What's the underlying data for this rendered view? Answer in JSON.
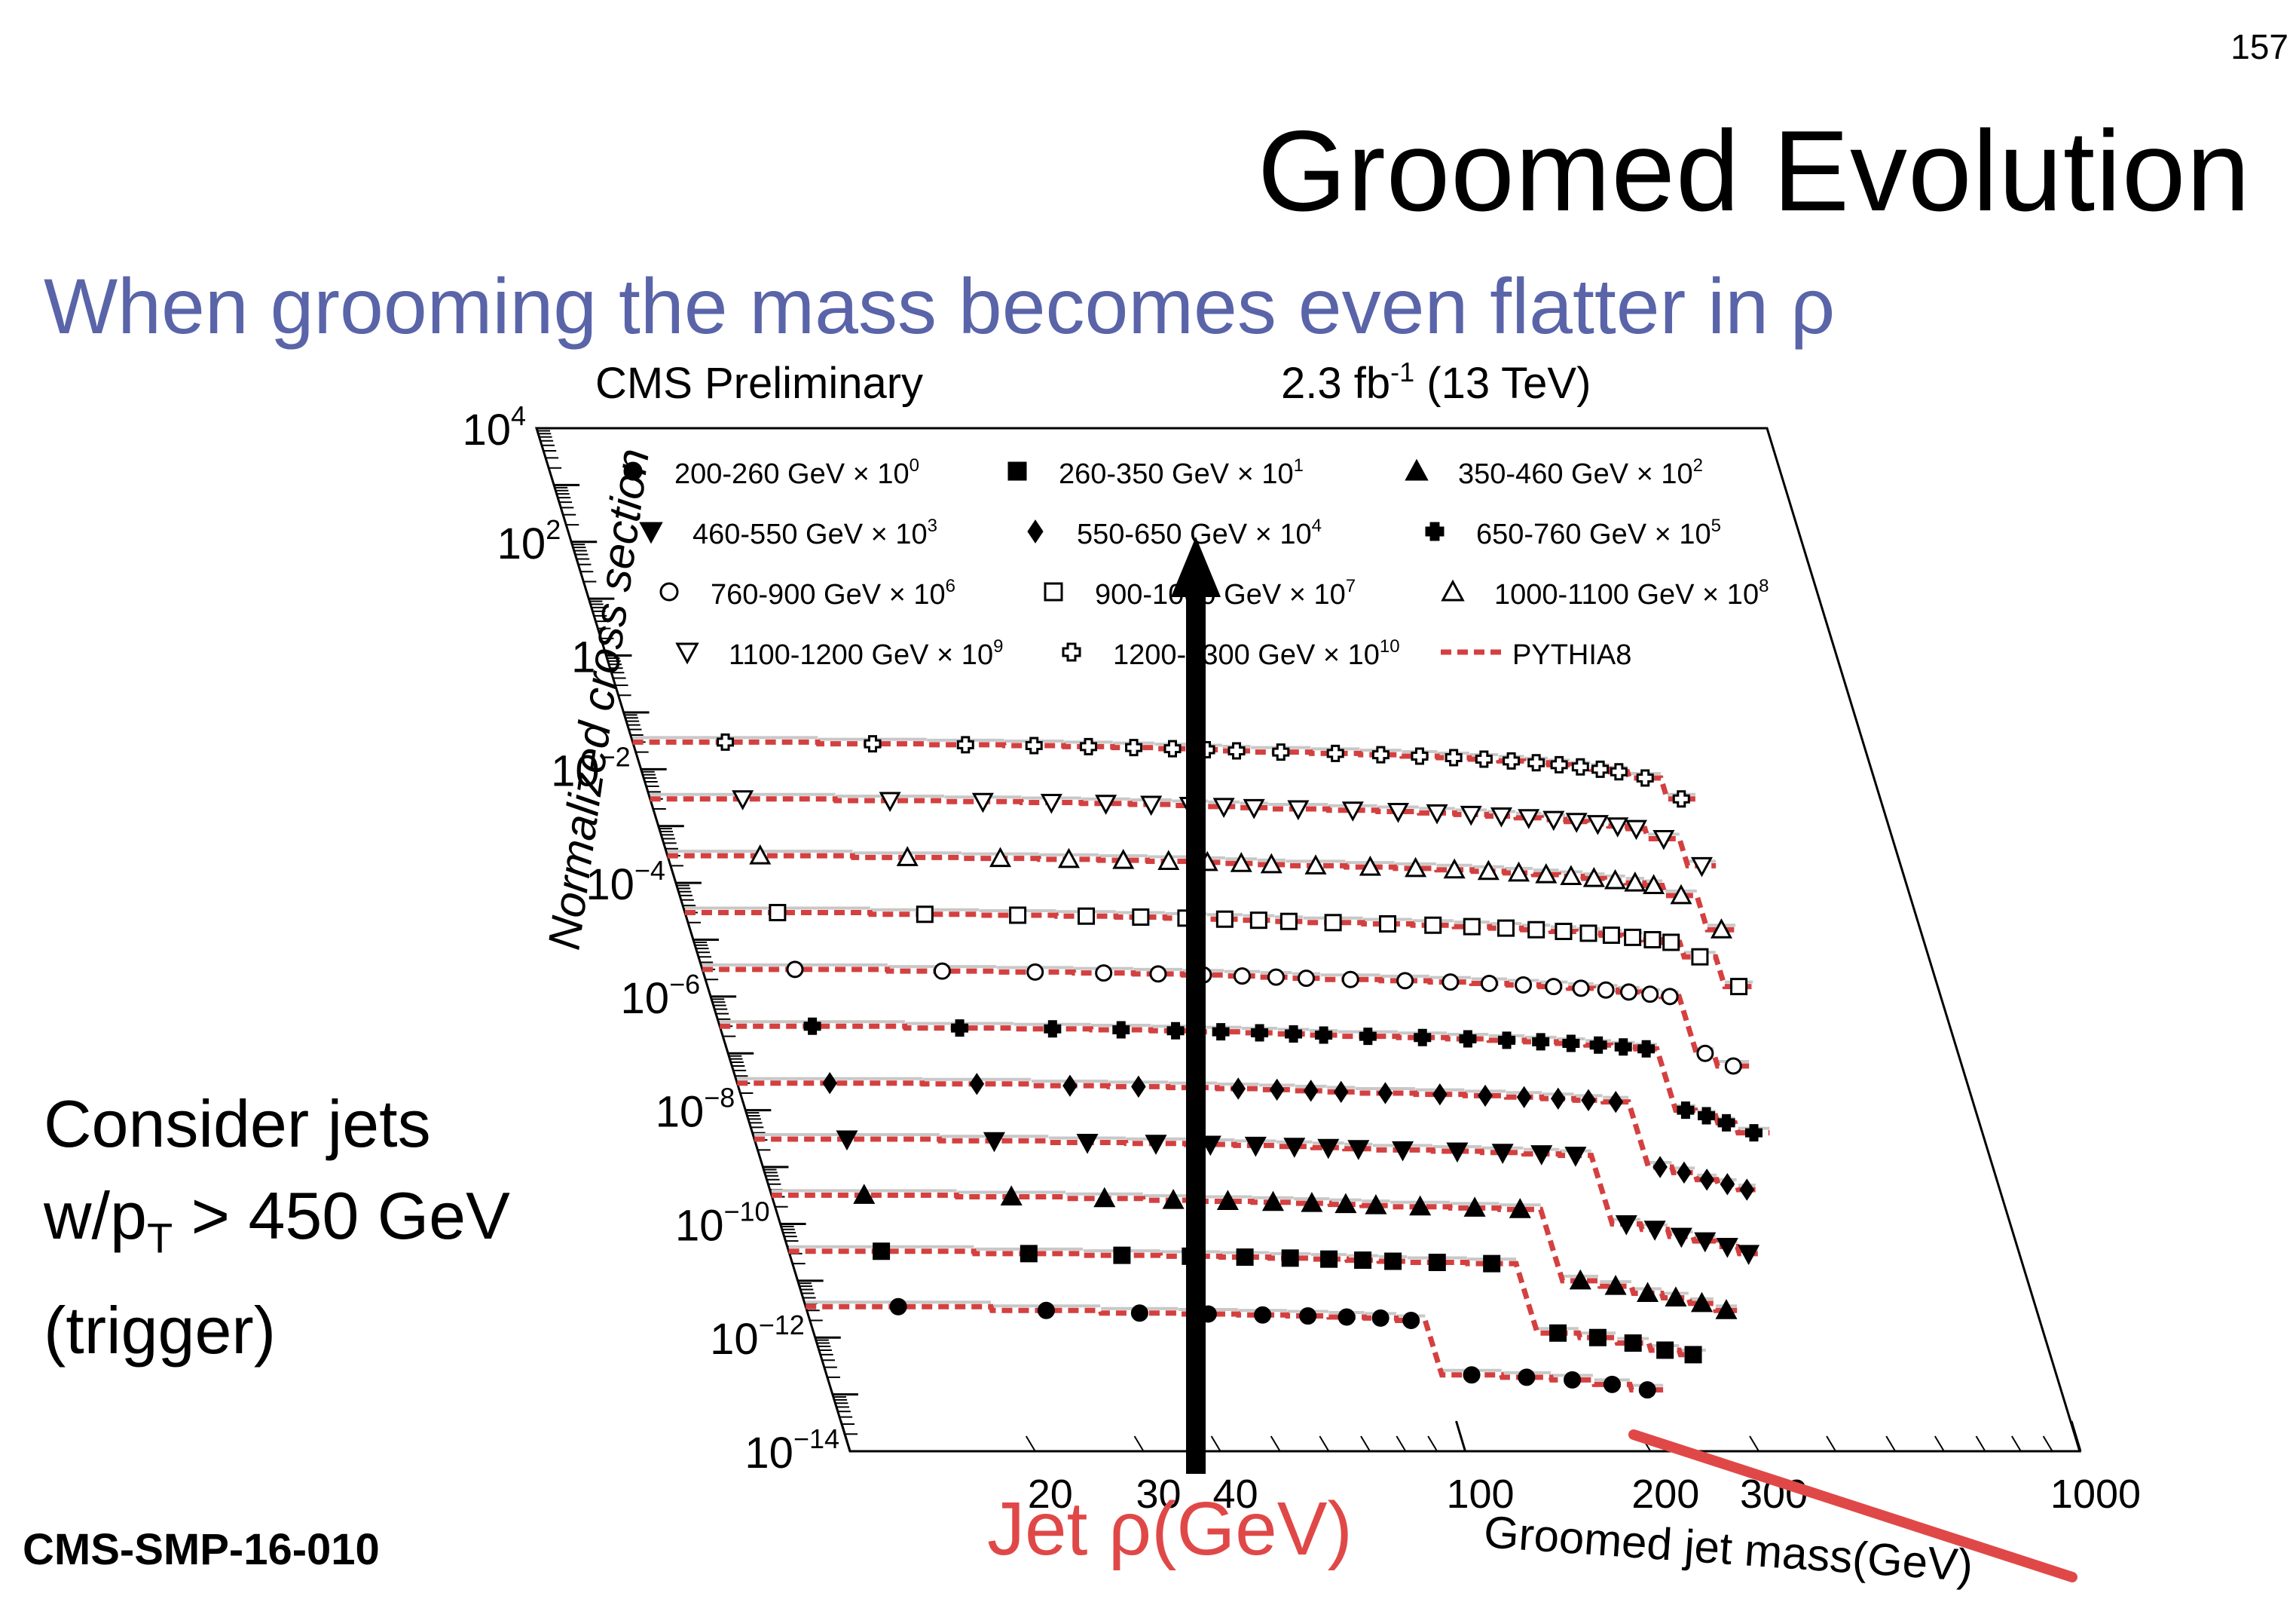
{
  "page_number": "157",
  "title": "Groomed Evolution",
  "subtitle": "When grooming the mass becomes even flatter in ρ",
  "note": {
    "line1": "Consider jets",
    "line2_prefix": "w/p",
    "line2_sub": "T",
    "line2_suffix": " > 450 GeV",
    "line3": "(trigger)"
  },
  "reference": "CMS-SMP-16-010",
  "annotations": {
    "arrow_label": "Jet ρ(GeV)",
    "arrow_color": "#000000",
    "strike_color": "#e04848",
    "label_color": "#e04848"
  },
  "chart_data": {
    "type": "line",
    "header_left": "CMS Preliminary",
    "header_right_main": "2.3 fb",
    "header_right_sup": "-1",
    "header_right_tail": " (13 TeV)",
    "ylabel": "Normalized cross section",
    "xlabel": "Groomed jet mass(GeV)",
    "y_scale": "log",
    "x_scale": "log",
    "ylim": [
      1e-14,
      10000
    ],
    "xlim": [
      10,
      1000
    ],
    "y_ticks": [
      {
        "base": "10",
        "exp": "4",
        "value": 10000
      },
      {
        "base": "10",
        "exp": "2",
        "value": 100
      },
      {
        "base": "1",
        "exp": "",
        "value": 1
      },
      {
        "base": "10",
        "exp": "−2",
        "value": 0.01
      },
      {
        "base": "10",
        "exp": "−4",
        "value": 0.0001
      },
      {
        "base": "10",
        "exp": "−6",
        "value": 1e-06
      },
      {
        "base": "10",
        "exp": "−8",
        "value": 1e-08
      },
      {
        "base": "10",
        "exp": "−10",
        "value": 1e-10
      },
      {
        "base": "10",
        "exp": "−12",
        "value": 1e-12
      },
      {
        "base": "10",
        "exp": "−14",
        "value": 1e-14
      }
    ],
    "x_ticks": [
      {
        "label": "20",
        "value": 20
      },
      {
        "label": "30",
        "value": 30
      },
      {
        "label": "40",
        "value": 40
      },
      {
        "label": "100",
        "value": 100
      },
      {
        "label": "200",
        "value": 200
      },
      {
        "label": "300",
        "value": 300
      },
      {
        "label": "1000",
        "value": 1000
      }
    ],
    "model_color": "#d44040",
    "legend_placement": "top",
    "legend": [
      {
        "text": "200-260 GeV × 10",
        "exp": "0",
        "marker": "circle-filled"
      },
      {
        "text": "260-350 GeV × 10",
        "exp": "1",
        "marker": "square-filled"
      },
      {
        "text": "350-460 GeV × 10",
        "exp": "2",
        "marker": "triangle-up-filled"
      },
      {
        "text": "460-550 GeV × 10",
        "exp": "3",
        "marker": "triangle-down-filled"
      },
      {
        "text": "550-650 GeV × 10",
        "exp": "4",
        "marker": "diamond-filled"
      },
      {
        "text": "650-760 GeV × 10",
        "exp": "5",
        "marker": "cross-filled"
      },
      {
        "text": "760-900 GeV × 10",
        "exp": "6",
        "marker": "circle-open"
      },
      {
        "text": "900-1000 GeV × 10",
        "exp": "7",
        "marker": "square-open"
      },
      {
        "text": "1000-1100 GeV × 10",
        "exp": "8",
        "marker": "triangle-up-open"
      },
      {
        "text": "1100-1200 GeV × 10",
        "exp": "9",
        "marker": "triangle-down-open"
      },
      {
        "text": "1200-1300 GeV × 10",
        "exp": "10",
        "marker": "cross-open"
      },
      {
        "text": "PYTHIA8",
        "exp": "",
        "marker": "dashed-line"
      }
    ],
    "bin_edges": [
      10,
      20,
      30,
      40,
      50,
      60,
      70,
      80,
      90,
      100,
      125,
      150,
      175,
      200,
      225,
      250,
      275,
      300,
      325,
      350,
      375,
      400,
      450,
      500
    ],
    "series": [
      {
        "name": "200-260 GeV × 10",
        "exp": "0",
        "marker": "circle-filled",
        "max_mass": 225,
        "values": [
          3.5e-12,
          3e-12,
          2.7e-12,
          2.6e-12,
          2.5e-12,
          2.4e-12,
          2.3e-12,
          2.2e-12,
          2e-12,
          2.2e-13,
          2e-13,
          1.8e-13,
          1.5e-13,
          1.2e-13
        ]
      },
      {
        "name": "260-350 GeV × 10",
        "exp": "1",
        "marker": "square-filled",
        "max_mass": 275,
        "values": [
          3.3e-11,
          3e-11,
          2.8e-11,
          2.7e-11,
          2.6e-11,
          2.5e-11,
          2.4e-11,
          2.3e-11,
          2.2e-11,
          2.1e-11,
          2e-11,
          1.2e-12,
          1e-12,
          8e-13,
          6e-13,
          5e-13
        ]
      },
      {
        "name": "350-460 GeV × 10",
        "exp": "2",
        "marker": "triangle-up-filled",
        "max_mass": 325,
        "values": [
          3.2e-10,
          3e-10,
          2.8e-10,
          2.6e-10,
          2.5e-10,
          2.4e-10,
          2.3e-10,
          2.2e-10,
          2.1e-10,
          2e-10,
          1.9e-10,
          1.8e-10,
          1e-11,
          8e-12,
          6e-12,
          5e-12,
          4e-12,
          3e-12
        ]
      },
      {
        "name": "460-550 GeV × 10",
        "exp": "3",
        "marker": "triangle-down-filled",
        "max_mass": 375,
        "values": [
          3.1e-09,
          2.9e-09,
          2.7e-09,
          2.6e-09,
          2.5e-09,
          2.4e-09,
          2.3e-09,
          2.2e-09,
          2.1e-09,
          2e-09,
          1.9e-09,
          1.8e-09,
          1.7e-09,
          1.6e-09,
          1e-10,
          8e-11,
          6e-11,
          5e-11,
          4e-11,
          3e-11
        ]
      },
      {
        "name": "550-650 GeV × 10",
        "exp": "4",
        "marker": "diamond-filled",
        "max_mass": 400,
        "values": [
          3e-08,
          2.9e-08,
          2.7e-08,
          2.6e-08,
          2.5e-08,
          2.4e-08,
          2.3e-08,
          2.2e-08,
          2.1e-08,
          2e-08,
          1.9e-08,
          1.8e-08,
          1.7e-08,
          1.6e-08,
          1.5e-08,
          1.4e-08,
          1e-09,
          8e-10,
          6e-10,
          5e-10,
          4e-10
        ]
      },
      {
        "name": "650-760 GeV × 10",
        "exp": "5",
        "marker": "cross-filled",
        "max_mass": 450,
        "values": [
          3e-07,
          2.8e-07,
          2.7e-07,
          2.6e-07,
          2.5e-07,
          2.4e-07,
          2.3e-07,
          2.2e-07,
          2.1e-07,
          2e-07,
          1.9e-07,
          1.8e-07,
          1.7e-07,
          1.6e-07,
          1.5e-07,
          1.4e-07,
          1.3e-07,
          1.2e-07,
          1e-08,
          8e-09,
          6e-09,
          4e-09
        ]
      },
      {
        "name": "760-900 GeV × 10",
        "exp": "6",
        "marker": "circle-open",
        "max_mass": 450,
        "values": [
          3e-06,
          2.8e-06,
          2.7e-06,
          2.6e-06,
          2.5e-06,
          2.4e-06,
          2.3e-06,
          2.2e-06,
          2.1e-06,
          2e-06,
          1.9e-06,
          1.8e-06,
          1.7e-06,
          1.6e-06,
          1.5e-06,
          1.4e-06,
          1.3e-06,
          1.2e-06,
          1.1e-06,
          1e-06,
          1e-07,
          6e-08
        ]
      },
      {
        "name": "900-1000 GeV × 10",
        "exp": "7",
        "marker": "square-open",
        "max_mass": 500,
        "values": [
          3e-05,
          2.8e-05,
          2.7e-05,
          2.6e-05,
          2.5e-05,
          2.4e-05,
          2.3e-05,
          2.2e-05,
          2.1e-05,
          2e-05,
          1.9e-05,
          1.8e-05,
          1.7e-05,
          1.6e-05,
          1.5e-05,
          1.4e-05,
          1.3e-05,
          1.2e-05,
          1.1e-05,
          1e-05,
          9e-06,
          5e-06,
          1.5e-06
        ]
      },
      {
        "name": "1000-1100 GeV × 10",
        "exp": "8",
        "marker": "triangle-up-open",
        "max_mass": 500,
        "values": [
          0.0003,
          0.00028,
          0.00027,
          0.00026,
          0.00025,
          0.00024,
          0.00023,
          0.00022,
          0.00021,
          0.0002,
          0.00019,
          0.00018,
          0.00017,
          0.00016,
          0.00015,
          0.00014,
          0.00013,
          0.00012,
          0.00011,
          0.0001,
          9e-05,
          6e-05,
          1.5e-05
        ]
      },
      {
        "name": "1100-1200 GeV × 10",
        "exp": "9",
        "marker": "triangle-down-open",
        "max_mass": 500,
        "values": [
          0.003,
          0.0028,
          0.0027,
          0.0026,
          0.0025,
          0.0024,
          0.0023,
          0.0022,
          0.0021,
          0.002,
          0.0019,
          0.0018,
          0.0017,
          0.0016,
          0.0015,
          0.0014,
          0.0013,
          0.0012,
          0.0011,
          0.001,
          0.0009,
          0.0006,
          0.0002
        ]
      },
      {
        "name": "1200-1300 GeV × 10",
        "exp": "10",
        "marker": "cross-open",
        "max_mass": 500,
        "values": [
          0.03,
          0.028,
          0.027,
          0.026,
          0.025,
          0.024,
          0.023,
          0.022,
          0.021,
          0.02,
          0.019,
          0.018,
          0.017,
          0.016,
          0.015,
          0.014,
          0.013,
          0.012,
          0.011,
          0.01,
          0.009,
          0.007,
          0.003
        ]
      }
    ]
  }
}
